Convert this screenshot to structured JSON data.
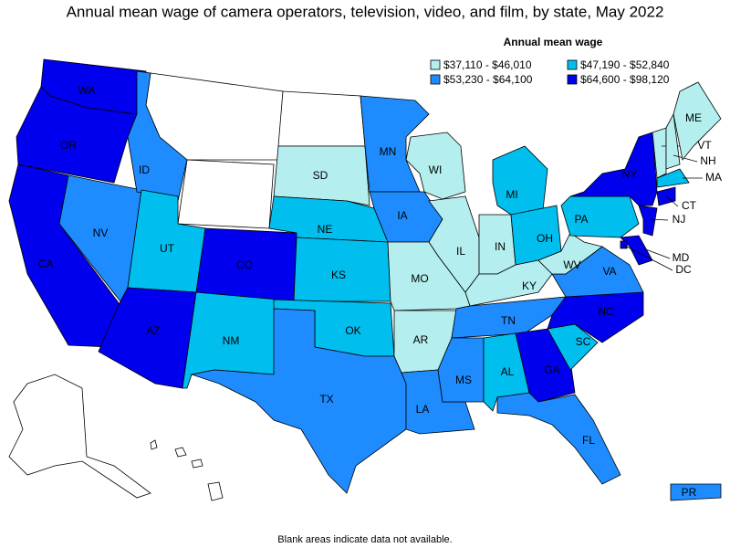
{
  "title": "Annual mean wage of camera operators, television, video, and film, by state, May 2022",
  "legend": {
    "title": "Annual mean wage",
    "items": [
      {
        "label": "$37,110 - $46,010",
        "color": "#b4eeee"
      },
      {
        "label": "$47,190 - $52,840",
        "color": "#00bfee"
      },
      {
        "label": "$53,230 - $64,100",
        "color": "#1e8cff"
      },
      {
        "label": "$64,600 - $98,120",
        "color": "#0000ee"
      }
    ]
  },
  "states": [
    {
      "abbr": "WA",
      "bin": 3
    },
    {
      "abbr": "OR",
      "bin": 3
    },
    {
      "abbr": "CA",
      "bin": 3
    },
    {
      "abbr": "NV",
      "bin": 2
    },
    {
      "abbr": "ID",
      "bin": 2
    },
    {
      "abbr": "UT",
      "bin": 1
    },
    {
      "abbr": "CO",
      "bin": 3
    },
    {
      "abbr": "AZ",
      "bin": 3
    },
    {
      "abbr": "NM",
      "bin": 1
    },
    {
      "abbr": "SD",
      "bin": 0
    },
    {
      "abbr": "NE",
      "bin": 1
    },
    {
      "abbr": "KS",
      "bin": 1
    },
    {
      "abbr": "OK",
      "bin": 1
    },
    {
      "abbr": "TX",
      "bin": 2
    },
    {
      "abbr": "MN",
      "bin": 2
    },
    {
      "abbr": "IA",
      "bin": 2
    },
    {
      "abbr": "MO",
      "bin": 0
    },
    {
      "abbr": "AR",
      "bin": 0
    },
    {
      "abbr": "LA",
      "bin": 2
    },
    {
      "abbr": "WI",
      "bin": 0
    },
    {
      "abbr": "IL",
      "bin": 0
    },
    {
      "abbr": "IN",
      "bin": 0
    },
    {
      "abbr": "MI",
      "bin": 1
    },
    {
      "abbr": "OH",
      "bin": 1
    },
    {
      "abbr": "KY",
      "bin": 0
    },
    {
      "abbr": "TN",
      "bin": 2
    },
    {
      "abbr": "MS",
      "bin": 2
    },
    {
      "abbr": "AL",
      "bin": 1
    },
    {
      "abbr": "GA",
      "bin": 3
    },
    {
      "abbr": "FL",
      "bin": 2
    },
    {
      "abbr": "SC",
      "bin": 1
    },
    {
      "abbr": "NC",
      "bin": 3
    },
    {
      "abbr": "VA",
      "bin": 2
    },
    {
      "abbr": "WV",
      "bin": 0
    },
    {
      "abbr": "PA",
      "bin": 1
    },
    {
      "abbr": "NY",
      "bin": 3
    },
    {
      "abbr": "NJ",
      "bin": 3
    },
    {
      "abbr": "MD",
      "bin": 3
    },
    {
      "abbr": "DC",
      "bin": 3
    },
    {
      "abbr": "CT",
      "bin": 3
    },
    {
      "abbr": "VT",
      "bin": 0
    },
    {
      "abbr": "NH",
      "bin": 0
    },
    {
      "abbr": "ME",
      "bin": 0
    },
    {
      "abbr": "MA",
      "bin": 1
    },
    {
      "abbr": "PR",
      "bin": 2
    }
  ],
  "note": "Blank areas indicate data not available."
}
